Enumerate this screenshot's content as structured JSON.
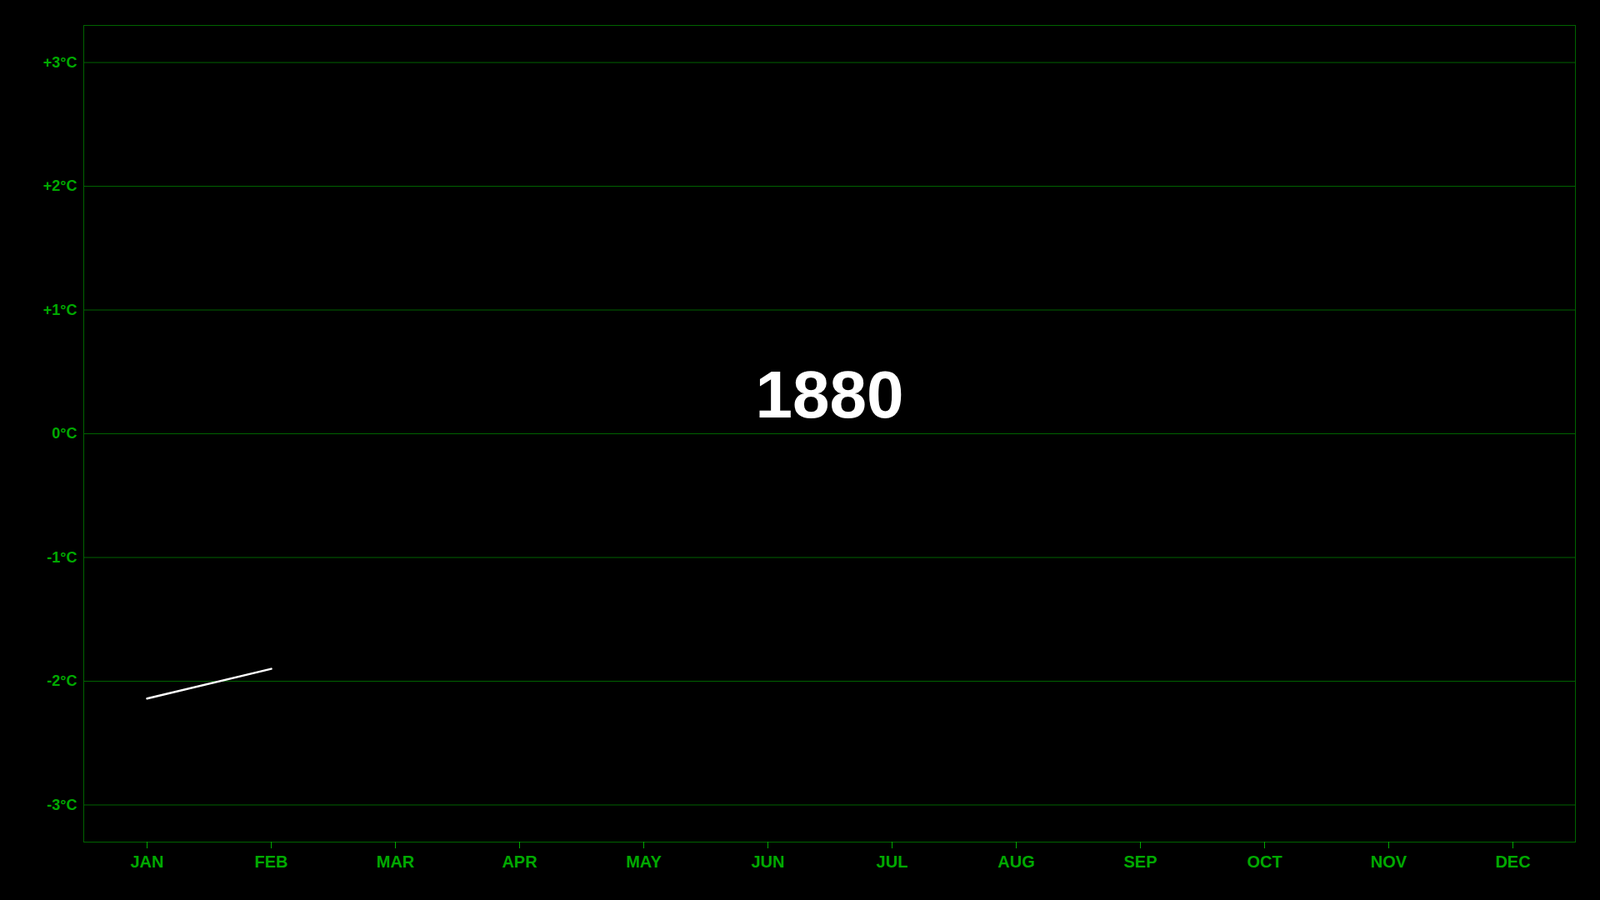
{
  "chart_data": {
    "type": "line",
    "categories": [
      "JAN",
      "FEB",
      "MAR",
      "APR",
      "MAY",
      "JUN",
      "JUL",
      "AUG",
      "SEP",
      "OCT",
      "NOV",
      "DEC"
    ],
    "values": [
      -2.14,
      -1.9,
      null,
      null,
      null,
      null,
      null,
      null,
      null,
      null,
      null,
      null
    ],
    "color": "#ffffff",
    "ylim": [
      -3.3,
      3.3
    ],
    "yticks": [
      {
        "value": -3,
        "label": "-3°C"
      },
      {
        "value": -2,
        "label": "-2°C"
      },
      {
        "value": -1,
        "label": "-1°C"
      },
      {
        "value": 0,
        "label": "0°C"
      },
      {
        "value": 1,
        "label": "+1°C"
      },
      {
        "value": 2,
        "label": "+2°C"
      },
      {
        "value": 3,
        "label": "+3°C"
      }
    ],
    "grid": true,
    "annotations": [
      "1880"
    ]
  }
}
